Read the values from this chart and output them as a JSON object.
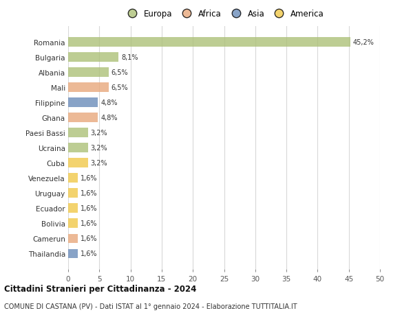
{
  "categories": [
    "Romania",
    "Bulgaria",
    "Albania",
    "Mali",
    "Filippine",
    "Ghana",
    "Paesi Bassi",
    "Ucraina",
    "Cuba",
    "Venezuela",
    "Uruguay",
    "Ecuador",
    "Bolivia",
    "Camerun",
    "Thailandia"
  ],
  "values": [
    45.2,
    8.1,
    6.5,
    6.5,
    4.8,
    4.8,
    3.2,
    3.2,
    3.2,
    1.6,
    1.6,
    1.6,
    1.6,
    1.6,
    1.6
  ],
  "labels": [
    "45,2%",
    "8,1%",
    "6,5%",
    "6,5%",
    "4,8%",
    "4,8%",
    "3,2%",
    "3,2%",
    "3,2%",
    "1,6%",
    "1,6%",
    "1,6%",
    "1,6%",
    "1,6%",
    "1,6%"
  ],
  "continents": [
    "Europa",
    "Europa",
    "Europa",
    "Africa",
    "Asia",
    "Africa",
    "Europa",
    "Europa",
    "America",
    "America",
    "America",
    "America",
    "America",
    "Africa",
    "Asia"
  ],
  "colors": {
    "Europa": "#adc178",
    "Africa": "#e8a87c",
    "Asia": "#6b8cba",
    "America": "#f0c84a"
  },
  "xlim": [
    0,
    50
  ],
  "xticks": [
    0,
    5,
    10,
    15,
    20,
    25,
    30,
    35,
    40,
    45,
    50
  ],
  "title": "Cittadini Stranieri per Cittadinanza - 2024",
  "subtitle": "COMUNE DI CASTANA (PV) - Dati ISTAT al 1° gennaio 2024 - Elaborazione TUTTITALIA.IT",
  "background_color": "#ffffff",
  "bar_alpha": 0.8,
  "grid_color": "#d8d8d8",
  "legend_order": [
    "Europa",
    "Africa",
    "Asia",
    "America"
  ]
}
